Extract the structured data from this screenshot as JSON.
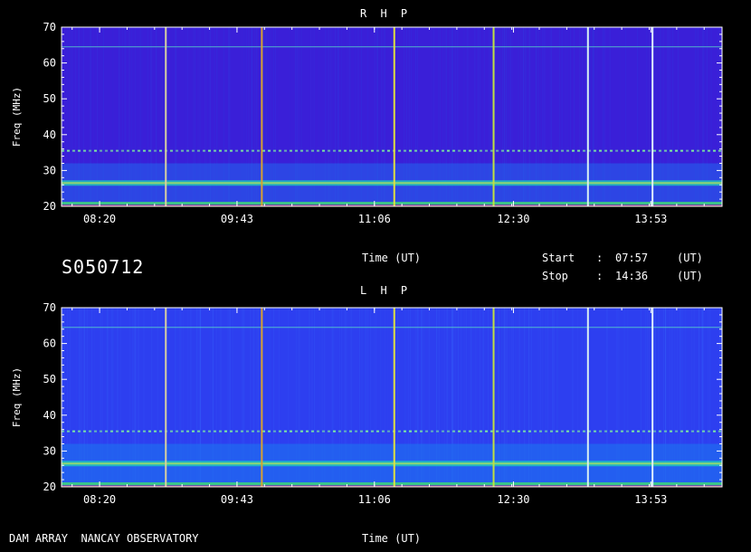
{
  "station_id": "S050712",
  "footer_left": "DAM ARRAY  NANCAY OBSERVATORY",
  "time_info": {
    "start_label": "Start",
    "stop_label": "Stop",
    "colon": ":",
    "start_value": "07:57",
    "stop_value": "14:36",
    "unit": "(UT)"
  },
  "chart_data": [
    {
      "type": "heatmap",
      "title": "R H P",
      "xlabel": "Time (UT)",
      "ylabel": "Freq (MHz)",
      "xticks": [
        "08:20",
        "09:43",
        "11:06",
        "12:30",
        "13:53"
      ],
      "yticks": [
        20,
        30,
        40,
        50,
        60,
        70
      ],
      "ylim": [
        20,
        70
      ],
      "xlim": [
        "07:57",
        "14:36"
      ],
      "background_color": "#3a1fd8",
      "emission_bands_mhz": [
        21,
        26.5,
        35.5,
        64.5
      ],
      "vertical_markers": [
        "09:00",
        "09:58",
        "11:18",
        "12:18",
        "13:15",
        "13:54"
      ]
    },
    {
      "type": "heatmap",
      "title": "L H P",
      "xlabel": "Time (UT)",
      "ylabel": "Freq (MHz)",
      "xticks": [
        "08:20",
        "09:43",
        "11:06",
        "12:30",
        "13:53"
      ],
      "yticks": [
        20,
        30,
        40,
        50,
        60,
        70
      ],
      "ylim": [
        20,
        70
      ],
      "xlim": [
        "07:57",
        "14:36"
      ],
      "background_color": "#2d3ff0",
      "emission_bands_mhz": [
        21,
        26.5,
        35.5,
        64.5
      ],
      "vertical_markers": [
        "09:00",
        "09:58",
        "11:18",
        "12:18",
        "13:15",
        "13:54"
      ]
    }
  ]
}
